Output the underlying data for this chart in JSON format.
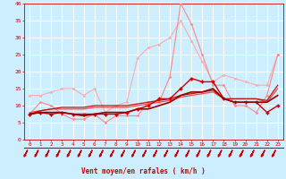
{
  "title": "",
  "xlabel": "Vent moyen/en rafales ( km/h )",
  "xlim": [
    -0.5,
    23.5
  ],
  "ylim": [
    0,
    40
  ],
  "yticks": [
    0,
    5,
    10,
    15,
    20,
    25,
    30,
    35,
    40
  ],
  "xticks": [
    0,
    1,
    2,
    3,
    4,
    5,
    6,
    7,
    8,
    9,
    10,
    11,
    12,
    13,
    14,
    15,
    16,
    17,
    18,
    19,
    20,
    21,
    22,
    23
  ],
  "background_color": "#cceeff",
  "grid_color": "#ffffff",
  "series": [
    {
      "x": [
        0,
        1,
        2,
        3,
        4,
        5,
        6,
        7,
        8,
        9,
        10,
        11,
        12,
        13,
        14,
        15,
        16,
        17,
        18,
        19,
        20,
        21,
        22,
        23
      ],
      "y": [
        13,
        13,
        14,
        15,
        15,
        13,
        15,
        8,
        10,
        11,
        24,
        27,
        28,
        30,
        35,
        29,
        23,
        17,
        19,
        18,
        17,
        16,
        16,
        25
      ],
      "color": "#ffaaaa",
      "marker": "D",
      "markersize": 1.5,
      "linewidth": 0.8,
      "zorder": 2
    },
    {
      "x": [
        0,
        1,
        2,
        3,
        4,
        5,
        6,
        7,
        8,
        9,
        10,
        11,
        12,
        13,
        14,
        15,
        16,
        17,
        18,
        19,
        20,
        21,
        22,
        23
      ],
      "y": [
        7.5,
        11,
        10,
        7.5,
        6,
        6,
        7.5,
        5,
        7,
        7,
        7,
        11,
        11,
        18.5,
        40,
        34,
        25,
        16,
        16,
        10,
        10,
        8,
        13,
        25
      ],
      "color": "#ff8888",
      "marker": "D",
      "markersize": 1.5,
      "linewidth": 0.8,
      "zorder": 3
    },
    {
      "x": [
        0,
        1,
        2,
        3,
        4,
        5,
        6,
        7,
        8,
        9,
        10,
        11,
        12,
        13,
        14,
        15,
        16,
        17,
        18,
        19,
        20,
        21,
        22,
        23
      ],
      "y": [
        7.5,
        8,
        7.5,
        8,
        7.5,
        7.5,
        7.5,
        7.5,
        7.5,
        8,
        9,
        10,
        12,
        12,
        15,
        18,
        17,
        17,
        12,
        11,
        11,
        11,
        8,
        10
      ],
      "color": "#cc0000",
      "marker": "P",
      "markersize": 2.5,
      "linewidth": 1.0,
      "zorder": 5
    },
    {
      "x": [
        0,
        1,
        2,
        3,
        4,
        5,
        6,
        7,
        8,
        9,
        10,
        11,
        12,
        13,
        14,
        15,
        16,
        17,
        18,
        19,
        20,
        21,
        22,
        23
      ],
      "y": [
        8,
        8.5,
        9,
        9,
        9,
        9,
        9.5,
        9.5,
        9.5,
        9.5,
        10,
        10.5,
        11,
        11.5,
        12.5,
        13,
        13.5,
        14,
        12,
        12,
        12,
        12,
        11,
        15
      ],
      "color": "#ff4444",
      "marker": null,
      "linewidth": 0.9,
      "zorder": 4
    },
    {
      "x": [
        0,
        1,
        2,
        3,
        4,
        5,
        6,
        7,
        8,
        9,
        10,
        11,
        12,
        13,
        14,
        15,
        16,
        17,
        18,
        19,
        20,
        21,
        22,
        23
      ],
      "y": [
        7.5,
        8,
        8,
        8,
        7.5,
        7,
        7.5,
        8,
        8,
        8,
        9,
        9,
        10,
        11,
        13,
        14,
        14,
        15,
        12,
        11,
        11,
        11,
        11,
        13
      ],
      "color": "#990000",
      "marker": null,
      "linewidth": 1.2,
      "zorder": 6
    },
    {
      "x": [
        0,
        1,
        2,
        3,
        4,
        5,
        6,
        7,
        8,
        9,
        10,
        11,
        12,
        13,
        14,
        15,
        16,
        17,
        18,
        19,
        20,
        21,
        22,
        23
      ],
      "y": [
        7.5,
        8.5,
        9,
        9.5,
        9.5,
        9.5,
        10,
        10,
        10,
        10,
        10.5,
        11,
        11.5,
        12,
        13,
        13.5,
        14,
        14.5,
        12,
        12,
        12,
        12,
        11.5,
        16
      ],
      "color": "#bb1111",
      "marker": null,
      "linewidth": 0.9,
      "zorder": 5
    }
  ],
  "arrow_color": "#cc0000",
  "tick_color": "#cc0000",
  "label_color": "#cc0000"
}
